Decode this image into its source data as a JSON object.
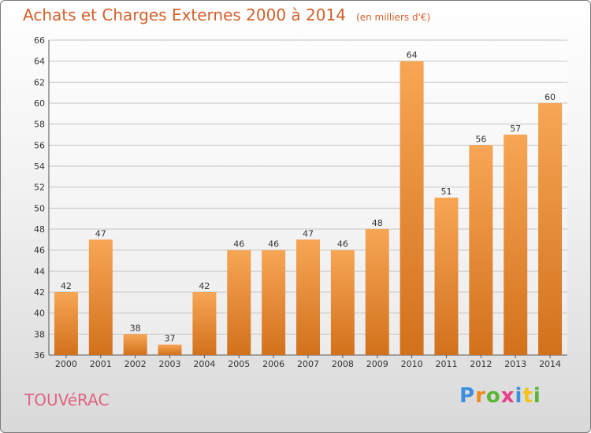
{
  "chart_data": {
    "type": "bar",
    "title": "Achats et Charges Externes 2000 à 2014",
    "subtitle": "(en milliers d'€)",
    "categories": [
      "2000",
      "2001",
      "2002",
      "2003",
      "2004",
      "2005",
      "2006",
      "2007",
      "2008",
      "2009",
      "2010",
      "2011",
      "2012",
      "2013",
      "2014"
    ],
    "values": [
      42,
      47,
      38,
      37,
      42,
      46,
      46,
      47,
      46,
      48,
      64,
      51,
      56,
      57,
      60
    ],
    "ylim": [
      36,
      66
    ],
    "yticks": [
      36,
      38,
      40,
      42,
      44,
      46,
      48,
      50,
      52,
      54,
      56,
      58,
      60,
      62,
      64,
      66
    ],
    "grid": true,
    "bar_color_top": "#f7a655",
    "bar_color_bottom": "#d2711c"
  },
  "footer": {
    "commune": "TOUVéRAC"
  },
  "logo": {
    "text": "Proxiti",
    "letter_colors": [
      "#3d8fe0",
      "#f08a1c",
      "#59b536",
      "#e8408a",
      "#3d8fe0",
      "#f0c419",
      "#59b536"
    ]
  }
}
